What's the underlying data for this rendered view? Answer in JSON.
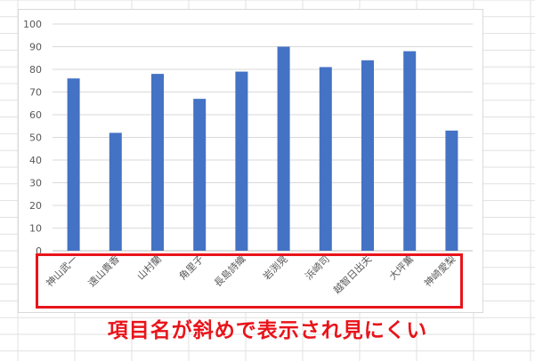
{
  "chart_data": {
    "type": "bar",
    "categories": [
      "神山武一",
      "遠山貴香",
      "山村蘭",
      "角里子",
      "長島詩織",
      "岩渕晃",
      "浜崎司",
      "越智日出夫",
      "大坪薫",
      "神崎愛梨"
    ],
    "values": [
      76,
      52,
      78,
      67,
      79,
      90,
      81,
      84,
      88,
      53
    ],
    "yticks": [
      "0",
      "10",
      "20",
      "30",
      "40",
      "50",
      "60",
      "70",
      "80",
      "90",
      "100"
    ],
    "ylim": [
      0,
      100
    ],
    "grid": true,
    "bar_color": "#4472c4"
  },
  "annotation": {
    "caption": "項目名が斜めで表示され見にくい",
    "color": "#e8141b"
  }
}
